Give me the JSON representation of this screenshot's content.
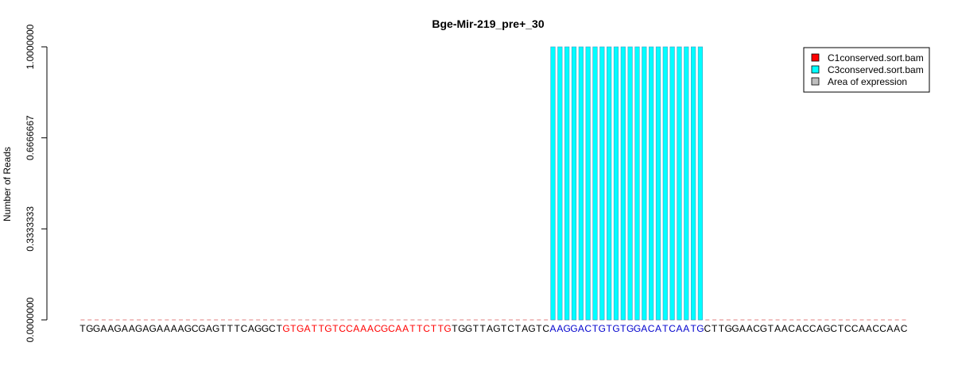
{
  "chart_data": {
    "type": "bar",
    "title": "Bge-Mir-219_pre+_30",
    "xlabel": "",
    "ylabel": "Number of Reads",
    "ylim": [
      0,
      1
    ],
    "yticks": [
      0,
      0.3333333,
      0.6666667,
      1
    ],
    "ytick_labels": [
      "0.0000000",
      "0.3333333",
      "0.6666667",
      "1.0000000"
    ],
    "sequence": "TGGAAGAAGAGAAAAGCGAGTTTCAGGCTGTGATTGTCCAAACGCAATTCTTGTGGTTAGTCTAGTCAAGGACTGTGTGGACATCAATGCTTGGAACGTAACACCAGCTCCAACCAAC",
    "sequence_segments": [
      {
        "text": "TGGAAGAAGAGAAAAGCGAGTTTCAGGCT",
        "color": "#000000"
      },
      {
        "text": "GTGATTGTCCAAACGCAATTCTTG",
        "color": "#ff0000"
      },
      {
        "text": "TGGTTAGTCTAGTC",
        "color": "#000000"
      },
      {
        "text": "AAGGACTGTGTGGACATCAATG",
        "color": "#0000cd"
      },
      {
        "text": "CTTGGAACGTAACACCAGCTCCAACCAAC",
        "color": "#000000"
      }
    ],
    "series": [
      {
        "name": "C1conserved.sort.bam",
        "color": "#ff0000",
        "values": [
          0,
          0,
          0,
          0,
          0,
          0,
          0,
          0,
          0,
          0,
          0,
          0,
          0,
          0,
          0,
          0,
          0,
          0,
          0,
          0,
          0,
          0,
          0,
          0,
          0,
          0,
          0,
          0,
          0,
          0,
          0,
          0,
          0,
          0,
          0,
          0,
          0,
          0,
          0,
          0,
          0,
          0,
          0,
          0,
          0,
          0,
          0,
          0,
          0,
          0,
          0,
          0,
          0,
          0,
          0,
          0,
          0,
          0,
          0,
          0,
          0,
          0,
          0,
          0,
          0,
          0,
          0,
          0,
          0,
          0,
          0,
          0,
          0,
          0,
          0,
          0,
          0,
          0,
          0,
          0,
          0,
          0,
          0,
          0,
          0,
          0,
          0,
          0,
          0,
          0,
          0,
          0,
          0,
          0,
          0,
          0,
          0,
          0,
          0,
          0,
          0,
          0,
          0,
          0,
          0,
          0,
          0,
          0,
          0,
          0,
          0,
          0,
          0,
          0,
          0,
          0,
          0,
          0
        ]
      },
      {
        "name": "C3conserved.sort.bam",
        "color": "#00ffff",
        "values": [
          0,
          0,
          0,
          0,
          0,
          0,
          0,
          0,
          0,
          0,
          0,
          0,
          0,
          0,
          0,
          0,
          0,
          0,
          0,
          0,
          0,
          0,
          0,
          0,
          0,
          0,
          0,
          0,
          0,
          0,
          0,
          0,
          0,
          0,
          0,
          0,
          0,
          0,
          0,
          0,
          0,
          0,
          0,
          0,
          0,
          0,
          0,
          0,
          0,
          0,
          0,
          0,
          0,
          0,
          0,
          0,
          0,
          0,
          0,
          0,
          0,
          0,
          0,
          0,
          0,
          0,
          0,
          1,
          1,
          1,
          1,
          1,
          1,
          1,
          1,
          1,
          1,
          1,
          1,
          1,
          1,
          1,
          1,
          1,
          1,
          1,
          1,
          1,
          1,
          0,
          0,
          0,
          0,
          0,
          0,
          0,
          0,
          0,
          0,
          0,
          0,
          0,
          0,
          0,
          0,
          0,
          0,
          0,
          0,
          0,
          0,
          0,
          0,
          0,
          0,
          0,
          0,
          0,
          0
        ]
      }
    ],
    "legend": {
      "position": "top-right",
      "entries": [
        {
          "label": "C1conserved.sort.bam",
          "color": "#ff0000"
        },
        {
          "label": "C3conserved.sort.bam",
          "color": "#00ffff"
        },
        {
          "label": "Area of expression",
          "color": "#bebebe"
        }
      ]
    },
    "grid": false
  }
}
